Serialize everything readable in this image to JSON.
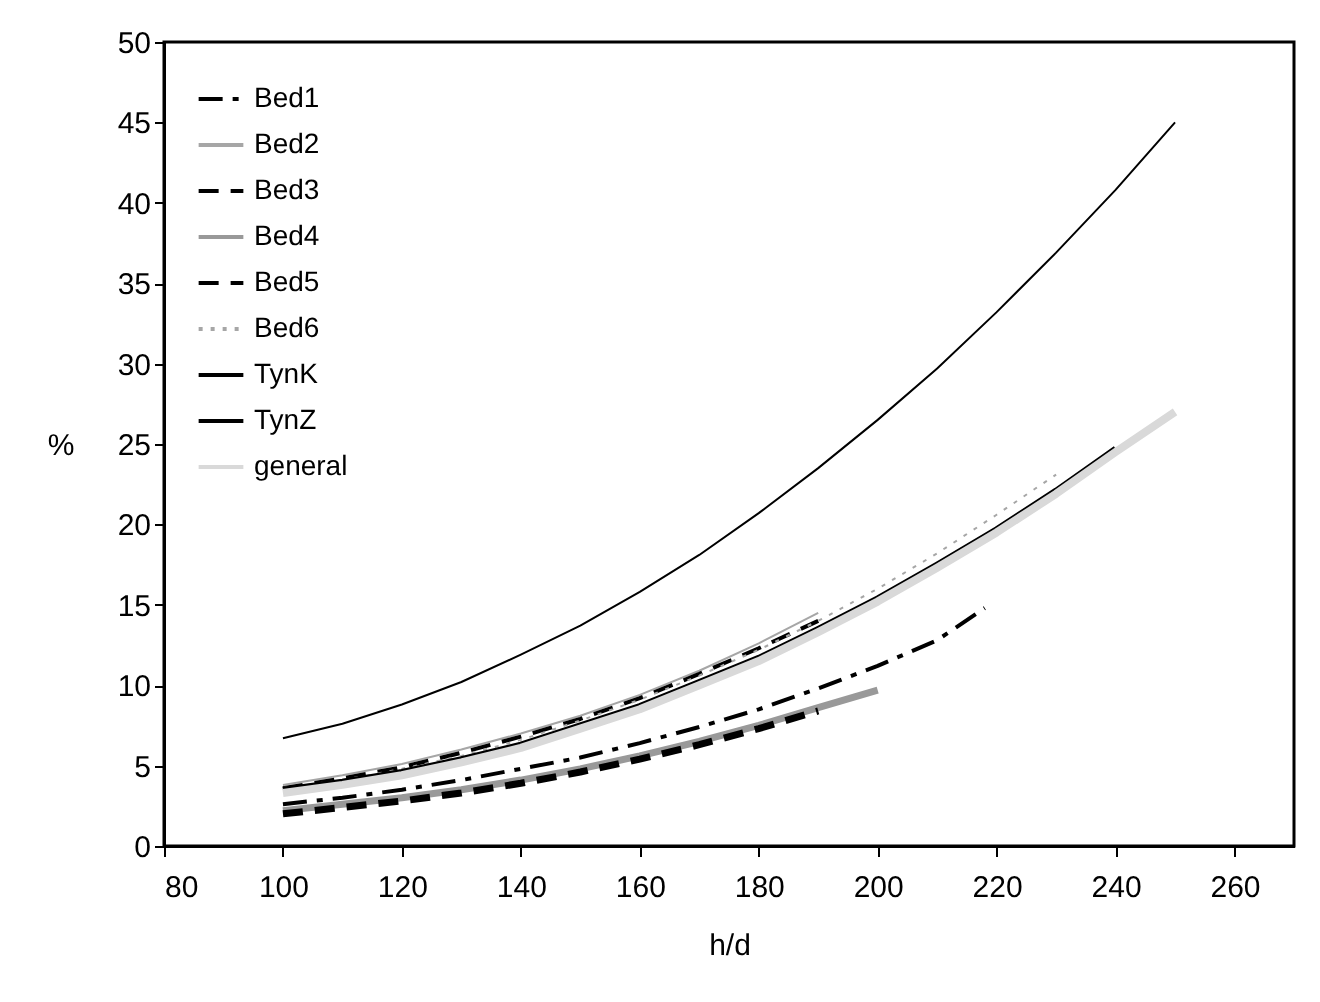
{
  "chart_data": {
    "type": "line",
    "xlabel": "h/d",
    "ylabel": "%",
    "x": [
      100,
      110,
      120,
      130,
      140,
      150,
      160,
      170,
      180,
      190,
      200,
      210,
      220,
      230,
      240,
      250
    ],
    "series": [
      {
        "name": "Bed1",
        "color": "#000000",
        "line_style": "dashdot",
        "x": [
          100,
          110,
          120,
          130,
          140,
          150,
          160,
          170,
          180,
          190,
          200,
          210,
          218
        ],
        "values": [
          2.6,
          3.0,
          3.5,
          4.1,
          4.8,
          5.5,
          6.4,
          7.4,
          8.5,
          9.8,
          11.2,
          12.8,
          14.8
        ]
      },
      {
        "name": "Bed2",
        "color": "#a6a6a6",
        "line_style": "solid",
        "x": [
          100,
          110,
          120,
          130,
          140,
          150,
          160,
          170,
          180,
          190
        ],
        "values": [
          3.8,
          4.4,
          5.1,
          6.0,
          7.0,
          8.1,
          9.4,
          10.9,
          12.6,
          14.5
        ]
      },
      {
        "name": "Bed3",
        "color": "#000000",
        "line_style": "dashed",
        "x": [
          100,
          110,
          120,
          130,
          140,
          150,
          160,
          170,
          180,
          190
        ],
        "values": [
          3.6,
          4.2,
          4.9,
          5.8,
          6.8,
          7.9,
          9.2,
          10.7,
          12.3,
          14.0
        ]
      },
      {
        "name": "Bed4",
        "color": "#999999",
        "line_style": "solid",
        "x": [
          100,
          110,
          120,
          130,
          140,
          150,
          160,
          170,
          180,
          190,
          200
        ],
        "values": [
          2.2,
          2.6,
          3.0,
          3.5,
          4.1,
          4.8,
          5.6,
          6.5,
          7.5,
          8.6,
          9.7
        ]
      },
      {
        "name": "Bed5",
        "color": "#000000",
        "line_style": "dashed",
        "x": [
          100,
          110,
          120,
          130,
          140,
          150,
          160,
          170,
          180,
          190
        ],
        "values": [
          2.0,
          2.4,
          2.8,
          3.3,
          3.9,
          4.6,
          5.4,
          6.3,
          7.3,
          8.4
        ]
      },
      {
        "name": "Bed6",
        "color": "#a6a6a6",
        "line_style": "dotted",
        "x": [
          100,
          110,
          120,
          130,
          140,
          150,
          160,
          170,
          180,
          190,
          200,
          210,
          220,
          230
        ],
        "values": [
          3.6,
          4.1,
          4.8,
          5.6,
          6.6,
          7.8,
          9.1,
          10.6,
          12.2,
          14.0,
          16.0,
          18.2,
          20.6,
          23.1
        ]
      },
      {
        "name": "TynK",
        "color": "#000000",
        "line_style": "solid",
        "values": [
          6.7,
          7.6,
          8.8,
          10.2,
          11.9,
          13.7,
          15.8,
          18.1,
          20.7,
          23.5,
          26.5,
          29.7,
          33.2,
          36.9,
          40.8,
          45.0
        ]
      },
      {
        "name": "TynZ",
        "color": "#000000",
        "line_style": "solid",
        "x": [
          100,
          110,
          120,
          130,
          140,
          150,
          160,
          170,
          180,
          190,
          200,
          210,
          220,
          230,
          240
        ],
        "values": [
          3.5,
          4.0,
          4.6,
          5.4,
          6.3,
          7.5,
          8.7,
          10.2,
          11.7,
          13.5,
          15.4,
          17.5,
          19.7,
          22.1,
          24.7
        ]
      },
      {
        "name": "general",
        "color": "#d9d9d9",
        "line_style": "solid",
        "values": [
          3.3,
          3.8,
          4.4,
          5.2,
          6.1,
          7.3,
          8.5,
          10.0,
          11.5,
          13.3,
          15.2,
          17.3,
          19.5,
          21.9,
          24.5,
          27.0
        ]
      }
    ],
    "xlim": [
      80,
      270
    ],
    "xticks": [
      80,
      100,
      120,
      140,
      160,
      180,
      200,
      220,
      240,
      260
    ],
    "ylim": [
      0,
      50
    ],
    "yticks": [
      0,
      5,
      10,
      15,
      20,
      25,
      30,
      35,
      40,
      45,
      50
    ],
    "grid": false,
    "legend": "top left",
    "marker": "none"
  }
}
